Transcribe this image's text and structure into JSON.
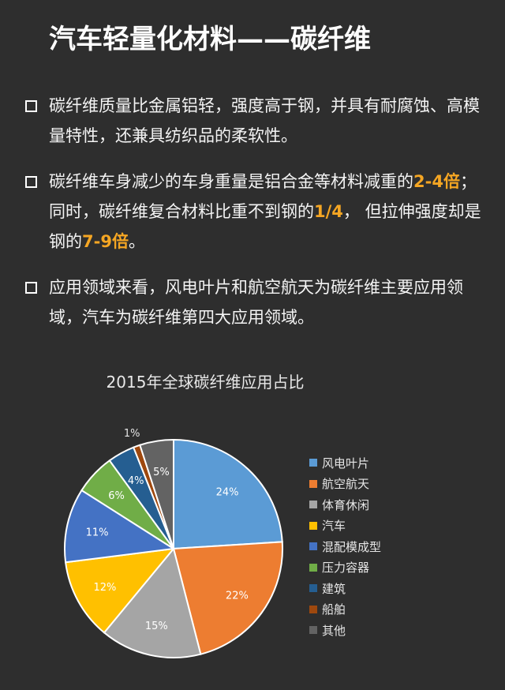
{
  "title": "汽车轻量化材料——碳纤维",
  "bullets": [
    {
      "segments": [
        {
          "text": "碳纤维质量比金属铝轻，强度高于钢，并具有耐腐蚀、高模量特性，还兼具纺织品的柔软性。"
        }
      ]
    },
    {
      "segments": [
        {
          "text": "碳纤维车身减少的车身重量是铝合金等材料减重的"
        },
        {
          "text": "2-4倍",
          "highlight": true
        },
        {
          "text": "；同时，碳纤维复合材料比重不到钢的"
        },
        {
          "text": "1/4",
          "highlight": true
        },
        {
          "text": "， 但拉伸强度却是钢的"
        },
        {
          "text": "7-9倍",
          "highlight": true
        },
        {
          "text": "。"
        }
      ]
    },
    {
      "segments": [
        {
          "text": "应用领域来看，风电叶片和航空航天为碳纤维主要应用领域，汽车为碳纤维第四大应用领域。"
        }
      ]
    }
  ],
  "chart_data": {
    "type": "pie",
    "title": "2015年全球碳纤维应用占比",
    "legend_position": "right",
    "categories": [
      "风电叶片",
      "航空航天",
      "体育休闲",
      "汽车",
      "混配模成型",
      "压力容器",
      "建筑",
      "船舶",
      "其他"
    ],
    "values": [
      24,
      22,
      15,
      12,
      11,
      6,
      4,
      1,
      5
    ],
    "labels": [
      "24%",
      "22%",
      "15%",
      "12%",
      "11%",
      "6%",
      "4%",
      "1%",
      "5%"
    ],
    "colors": [
      "#5b9bd5",
      "#ed7d31",
      "#a5a5a5",
      "#ffc000",
      "#4472c4",
      "#70ad47",
      "#255e91",
      "#9e480e",
      "#636363"
    ]
  }
}
